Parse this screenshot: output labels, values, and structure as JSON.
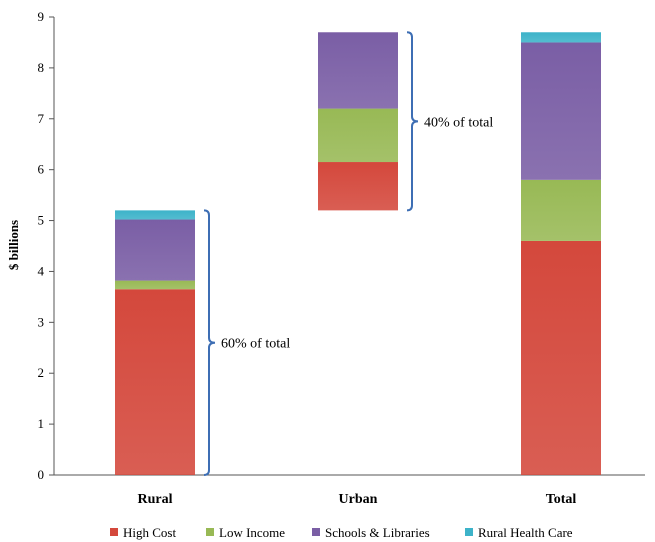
{
  "chart_data": {
    "type": "bar",
    "stacked": true,
    "title": "",
    "xlabel": "",
    "ylabel": "$ billions",
    "ylim": [
      0,
      9
    ],
    "yticks": [
      "0",
      "1",
      "2",
      "3",
      "4",
      "5",
      "6",
      "7",
      "8",
      "9"
    ],
    "categories": [
      "Rural",
      "Urban",
      "Total"
    ],
    "series": [
      {
        "name": "High Cost",
        "color": "#d4483c",
        "values": [
          3.65,
          0.95,
          4.6
        ]
      },
      {
        "name": "Low Income",
        "color": "#98b955",
        "values": [
          0.17,
          1.05,
          1.2
        ]
      },
      {
        "name": "Schools & Libraries",
        "color": "#7a5ea5",
        "values": [
          1.2,
          1.5,
          2.7
        ]
      },
      {
        "name": "Rural Health Care",
        "color": "#3db3c9",
        "values": [
          0.18,
          0.0,
          0.2
        ]
      }
    ],
    "bases": [
      0,
      5.2,
      0
    ],
    "annotations": [
      {
        "text": "60% of total",
        "category": "Rural",
        "from": 0,
        "to": 5.2
      },
      {
        "text": "40% of total",
        "category": "Urban",
        "from": 5.2,
        "to": 8.7
      }
    ],
    "legend_position": "bottom",
    "grid": false
  }
}
